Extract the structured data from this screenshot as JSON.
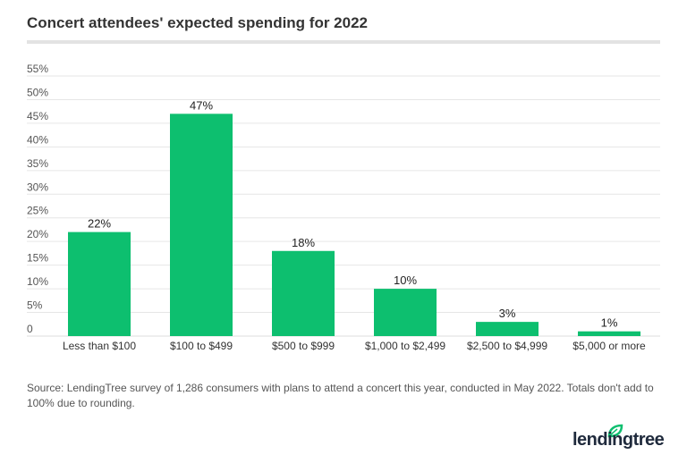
{
  "chart_data": {
    "type": "bar",
    "title": "Concert attendees' expected spending for 2022",
    "categories": [
      "Less than $100",
      "$100 to $499",
      "$500 to $999",
      "$1,000 to $2,499",
      "$2,500 to $4,999",
      "$5,000 or more"
    ],
    "values": [
      22,
      47,
      18,
      10,
      3,
      1
    ],
    "data_labels": [
      "22%",
      "47%",
      "18%",
      "10%",
      "3%",
      "1%"
    ],
    "yticks": [
      "0",
      "5%",
      "10%",
      "15%",
      "20%",
      "25%",
      "30%",
      "35%",
      "40%",
      "45%",
      "50%",
      "55%"
    ],
    "ylim": [
      0,
      55
    ],
    "grid": true,
    "bar_color": "#0dbf6f",
    "xlabel": "",
    "ylabel": ""
  },
  "source": "Source: LendingTree survey of 1,286 consumers with plans to attend a concert this year, conducted in May 2022. Totals don't add to 100% due to rounding.",
  "logo": {
    "text": "lendingtree",
    "color": "#1f2a3c",
    "leaf_color": "#0dbf6f"
  }
}
